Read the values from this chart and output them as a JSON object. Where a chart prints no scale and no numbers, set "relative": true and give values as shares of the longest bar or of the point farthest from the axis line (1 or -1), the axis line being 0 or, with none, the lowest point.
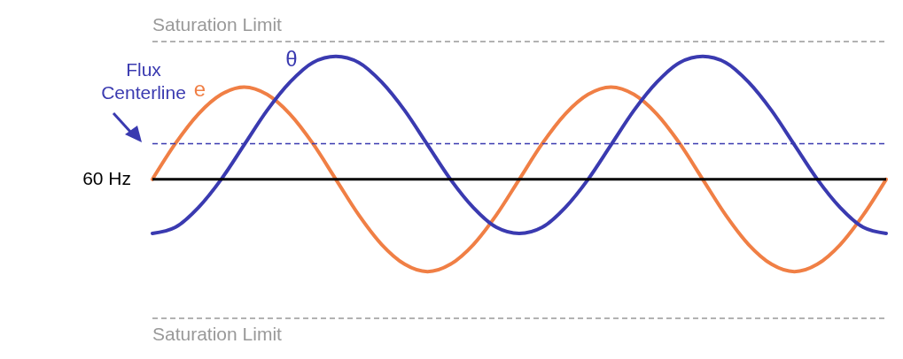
{
  "chart_data": {
    "type": "line",
    "relative": true,
    "categories": [
      null,
      null,
      null,
      null,
      null,
      null,
      null,
      null,
      null,
      null,
      null,
      null,
      null,
      null,
      null,
      null,
      null,
      null,
      null,
      null,
      null,
      null,
      null,
      null,
      null,
      null,
      null,
      null,
      null,
      null,
      null,
      null,
      null
    ],
    "series": [
      {
        "name": "e",
        "color": "#f07f45",
        "values": [
          0,
          0.29,
          0.53,
          0.69,
          0.75,
          0.69,
          0.53,
          0.29,
          0,
          -0.29,
          -0.53,
          -0.69,
          -0.75,
          -0.69,
          -0.53,
          -0.29,
          0,
          0.29,
          0.53,
          0.69,
          0.75,
          0.69,
          0.53,
          0.29,
          0,
          -0.29,
          -0.53,
          -0.69,
          -0.75,
          -0.69,
          -0.53,
          -0.29,
          0
        ]
      },
      {
        "name": "θ",
        "color": "#3a3ab0",
        "values": [
          -0.44,
          -0.39,
          -0.23,
          0.0,
          0.28,
          0.56,
          0.79,
          0.95,
          1.0,
          0.95,
          0.79,
          0.56,
          0.28,
          0.0,
          -0.23,
          -0.39,
          -0.44,
          -0.39,
          -0.23,
          0.0,
          0.28,
          0.56,
          0.79,
          0.95,
          1.0,
          0.95,
          0.79,
          0.56,
          0.28,
          0.0,
          -0.23,
          -0.39,
          -0.44
        ]
      }
    ],
    "ref_lines": [
      {
        "axis": "y",
        "value": 1.12,
        "label": "Saturation Limit",
        "color": "#999999",
        "line_style": "dashed"
      },
      {
        "axis": "y",
        "value": -1.13,
        "label": "Saturation Limit",
        "color": "#999999",
        "line_style": "dashed"
      },
      {
        "axis": "y",
        "value": 0.29,
        "label": "Flux Centerline",
        "color": "#3a3ab0",
        "line_style": "dashed"
      },
      {
        "axis": "y",
        "value": 0,
        "label": "60 Hz",
        "color": "#000000",
        "line_style": "solid"
      }
    ]
  }
}
